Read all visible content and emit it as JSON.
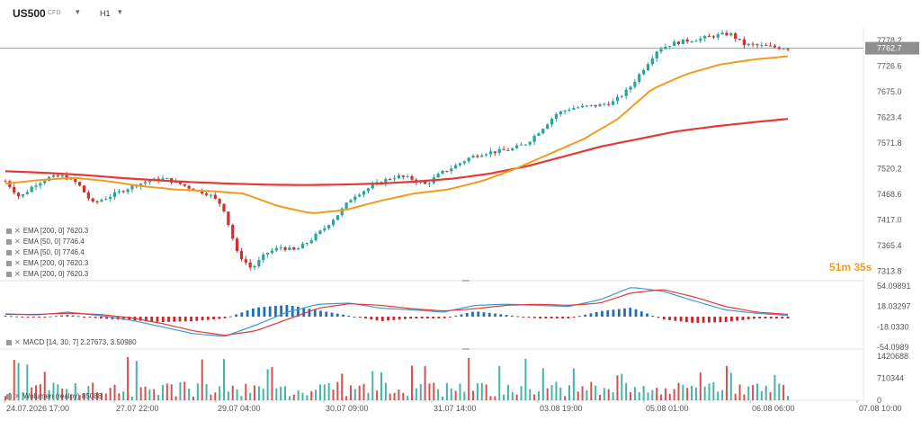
{
  "header": {
    "symbol": "US500",
    "symbol_tag": "CFD",
    "timeframe": "H1",
    "dropdown_glyph": "▾"
  },
  "price_axis_ticks": [
    "7778.2",
    "7726.6",
    "7675.0",
    "7623.4",
    "7571.8",
    "7520.2",
    "7468.6",
    "7417.0",
    "7365.4",
    "7313.8"
  ],
  "current_price": "7762.7",
  "timer": "51m 35s",
  "legend": [
    "EMA [200, 0] 7620.3",
    "EMA [50, 0] 7746.4",
    "EMA [50, 0] 7746.4",
    "EMA [200, 0] 7620.3",
    "EMA [200, 0] 7620.3"
  ],
  "macd_label": "MACD [14, 30, 7] 2.27673, 3.50980",
  "macd_axis_ticks": [
    "54.09891",
    "18.03297",
    "-18.0330",
    "-54.0989"
  ],
  "volume_label": "Wolumen (realny) 85088",
  "volume_axis_ticks": [
    "1420688",
    "710344",
    "0"
  ],
  "time_axis": [
    "24.07.2026 17:00",
    "27.07 22:00",
    "29.07 04:00",
    "30.07 09:00",
    "31.07 14:00",
    "03.08 19:00",
    "05.08 01:00",
    "06.08 06:00",
    "07.08 10:00"
  ],
  "icons": {
    "legend_row": "indicator-settings-icon",
    "legend_remove": "close-icon"
  },
  "colors": {
    "up": "#26a69a",
    "down": "#d32f2f",
    "ema50": "#f29b1d",
    "ema200": "#e53935",
    "macd_line": "#3a9bd5",
    "signal_line": "#e53935",
    "hist_pos": "#1e6fb8",
    "hist_neg": "#c62828",
    "current_price_line": "#9e9e9e"
  },
  "chart_data": {
    "type": "candlestick",
    "symbol": "US500",
    "timeframe": "H1",
    "time_labels": [
      "24.07.2026 17:00",
      "27.07 22:00",
      "29.07 04:00",
      "30.07 09:00",
      "31.07 14:00",
      "03.08 19:00",
      "05.08 01:00",
      "06.08 06:00",
      "07.08 10:00"
    ],
    "price_anchors": [
      7495,
      7462,
      7488,
      7502,
      7505,
      7490,
      7450,
      7462,
      7475,
      7488,
      7496,
      7500,
      7490,
      7478,
      7470,
      7445,
      7350,
      7318,
      7350,
      7362,
      7355,
      7375,
      7400,
      7430,
      7465,
      7480,
      7495,
      7505,
      7500,
      7488,
      7510,
      7525,
      7542,
      7552,
      7555,
      7560,
      7572,
      7600,
      7630,
      7642,
      7645,
      7648,
      7655,
      7680,
      7720,
      7760,
      7772,
      7778,
      7782,
      7788,
      7792,
      7770,
      7768,
      7765,
      7762.7
    ],
    "ema50_anchors": [
      7490,
      7497,
      7502,
      7495,
      7485,
      7478,
      7475,
      7470,
      7445,
      7430,
      7437,
      7455,
      7470,
      7478,
      7495,
      7520,
      7550,
      7580,
      7620,
      7680,
      7710,
      7730,
      7740,
      7746.4
    ],
    "ema200_anchors": [
      7515,
      7512,
      7508,
      7502,
      7497,
      7493,
      7490,
      7488,
      7487,
      7488,
      7490,
      7494,
      7500,
      7510,
      7525,
      7545,
      7565,
      7580,
      7595,
      7605,
      7613,
      7620.3
    ],
    "macd": {
      "params": [
        14,
        30,
        7
      ],
      "macd": 2.27673,
      "signal": 3.5098,
      "ylim": [
        -54.0989,
        54.09891
      ]
    },
    "volume": {
      "last": 85088,
      "ylim": [
        0,
        1420688
      ]
    },
    "price_ylim": [
      7300,
      7800
    ]
  }
}
